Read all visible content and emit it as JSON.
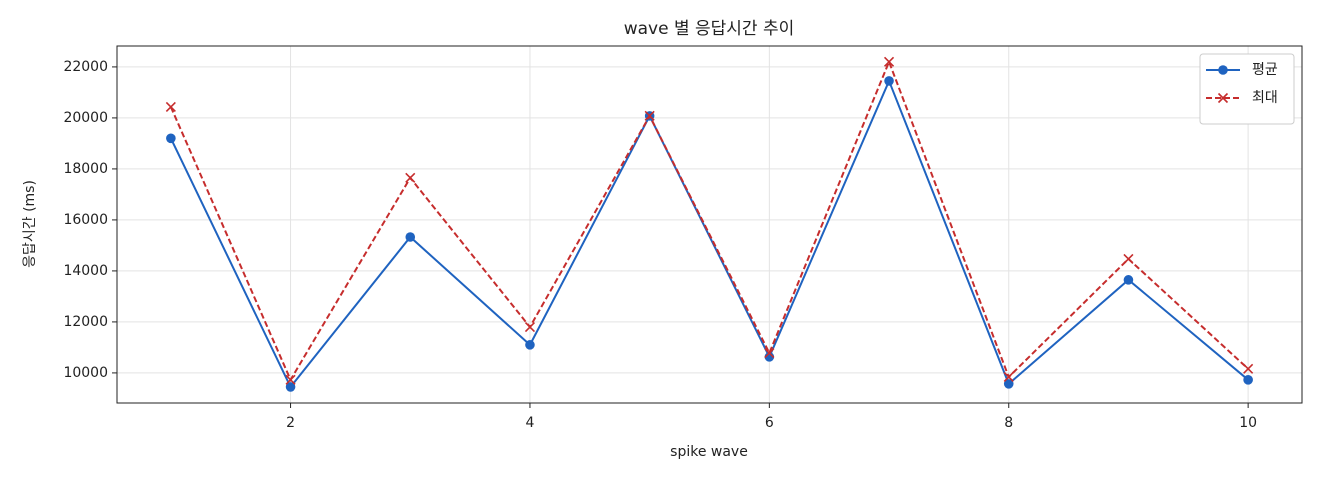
{
  "chart_data": {
    "type": "line",
    "title": "wave 별 응답시간 추이",
    "xlabel": "spike wave",
    "ylabel": "응답시간 (ms)",
    "x": [
      1,
      2,
      3,
      4,
      5,
      6,
      7,
      8,
      9,
      10
    ],
    "series": [
      {
        "name": "평균",
        "color": "#1f63c0",
        "linestyle": "solid",
        "marker": "circle",
        "values": [
          19200,
          9450,
          15330,
          11100,
          20080,
          10630,
          21450,
          9570,
          13650,
          9730
        ]
      },
      {
        "name": "최대",
        "color": "#c62d2d",
        "linestyle": "dashed",
        "marker": "x",
        "values": [
          20430,
          9730,
          17650,
          11800,
          20080,
          10780,
          22200,
          9840,
          14470,
          10160
        ]
      }
    ],
    "xlim": [
      0.55,
      10.45
    ],
    "ylim": [
      8820,
      22820
    ],
    "xticks": [
      2,
      4,
      6,
      8,
      10
    ],
    "yticks": [
      10000,
      12000,
      14000,
      16000,
      18000,
      20000,
      22000
    ],
    "grid": true,
    "legend": "upper-right"
  }
}
